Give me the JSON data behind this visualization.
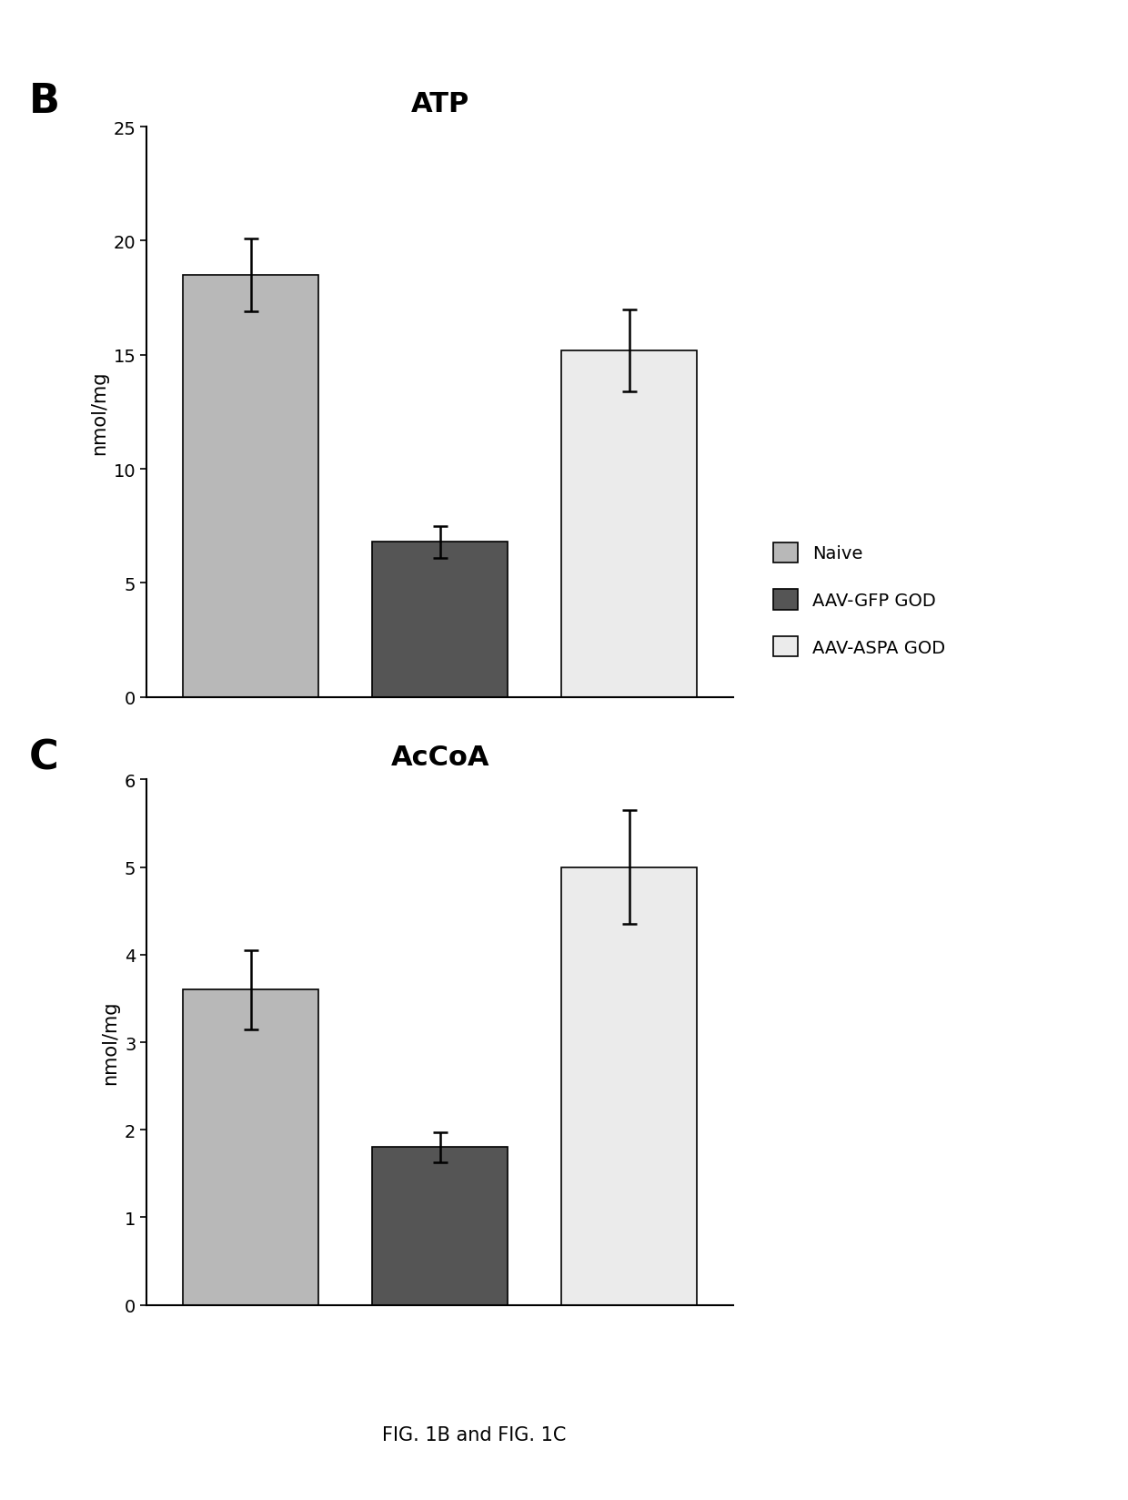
{
  "panel_B": {
    "title": "ATP",
    "label": "B",
    "ylabel": "nmol/mg",
    "ylim": [
      0,
      25
    ],
    "yticks": [
      0,
      5,
      10,
      15,
      20,
      25
    ],
    "categories": [
      "Naive",
      "AAV-GFP GOD",
      "AAV-ASPA GOD"
    ],
    "values": [
      18.5,
      6.8,
      15.2
    ],
    "errors": [
      1.6,
      0.7,
      1.8
    ],
    "bar_colors": [
      "#b8b8b8",
      "#555555",
      "#ebebeb"
    ],
    "bar_edgecolor": "#000000",
    "error_capsize": 6,
    "error_color": "black",
    "error_linewidth": 1.8
  },
  "panel_C": {
    "title": "AcCoA",
    "label": "C",
    "ylabel": "nmol/mg",
    "ylim": [
      0,
      6
    ],
    "yticks": [
      0,
      1,
      2,
      3,
      4,
      5,
      6
    ],
    "categories": [
      "Naive",
      "AAV-GFP GOD",
      "AAV-ASPA GOD"
    ],
    "values": [
      3.6,
      1.8,
      5.0
    ],
    "errors": [
      0.45,
      0.17,
      0.65
    ],
    "bar_colors": [
      "#b8b8b8",
      "#555555",
      "#ebebeb"
    ],
    "bar_edgecolor": "#000000",
    "error_capsize": 6,
    "error_color": "black",
    "error_linewidth": 1.8
  },
  "legend_labels": [
    "Naive",
    "AAV-GFP GOD",
    "AAV-ASPA GOD"
  ],
  "legend_colors": [
    "#b8b8b8",
    "#555555",
    "#ebebeb"
  ],
  "figure_caption": "FIG. 1B and FIG. 1C",
  "background_color": "#ffffff",
  "bar_width": 0.72
}
